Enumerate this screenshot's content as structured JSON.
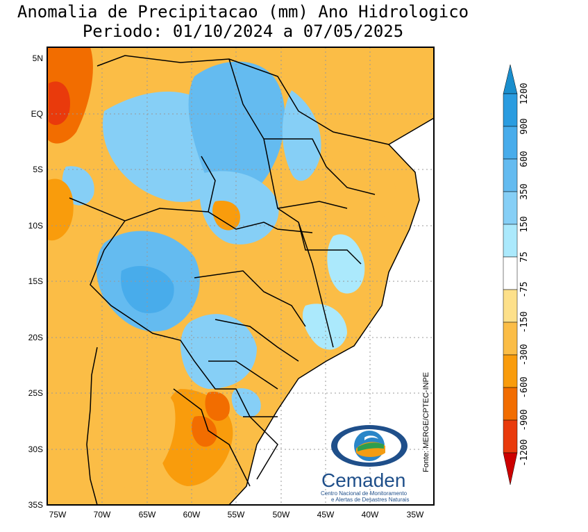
{
  "title": {
    "line1": "Anomalia de Precipitacao (mm) Ano Hidrologico",
    "line2": "Periodo: 01/10/2024 a 07/05/2025"
  },
  "map": {
    "lat_ticks": [
      "5N",
      "EQ",
      "5S",
      "10S",
      "15S",
      "20S",
      "25S",
      "30S",
      "35S"
    ],
    "lon_ticks": [
      "75W",
      "70W",
      "65W",
      "60W",
      "55W",
      "50W",
      "45W",
      "40W",
      "35W"
    ],
    "source_text": "Fonte: MERGE/CPTEC-INPE",
    "ocean_color": "#ffffff"
  },
  "logo": {
    "name": "Cemaden",
    "subtitle_line1": "Centro Nacional de Monitoramento",
    "subtitle_line2": "e Alertas de Desastres Naturais"
  },
  "colorbar": {
    "labels": [
      "1200",
      "900",
      "600",
      "350",
      "150",
      "75",
      "-75",
      "-150",
      "-300",
      "-600",
      "-900",
      "-1200"
    ],
    "colors": [
      "#1a8ecd",
      "#2a9ce0",
      "#48aceb",
      "#64bbf0",
      "#86cff6",
      "#abe9fc",
      "#ffffff",
      "#fde08a",
      "#fbbd46",
      "#f99c0c",
      "#f26d00",
      "#e93a0c",
      "#cc0000"
    ]
  }
}
